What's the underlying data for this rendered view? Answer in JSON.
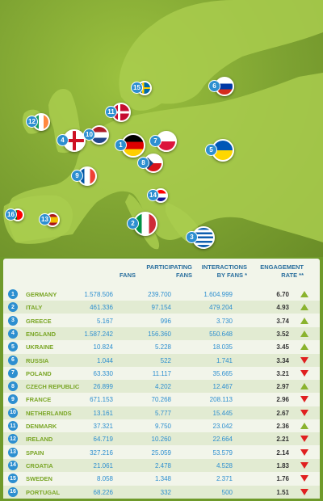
{
  "chart_data": {
    "type": "table",
    "columns": [
      "",
      "FANS",
      "PARTICIPATING FANS",
      "INTERACTIONS BY FANS *",
      "ENGAGEMENT RATE **"
    ],
    "column_lines": [
      [
        "FANS"
      ],
      [
        "PARTICIPATING",
        "FANS"
      ],
      [
        "INTERACTIONS",
        "BY FANS *"
      ],
      [
        "ENGAGEMENT",
        "RATE **"
      ]
    ],
    "rows": [
      {
        "rank": "1",
        "country": "GERMANY",
        "fans": "1.578.506",
        "participating": "239.700",
        "interactions": "1.604.999",
        "rate": "6.70",
        "trend": "up",
        "flag": [
          "#000000",
          "#dd0000",
          "#ffce00"
        ],
        "flag_dir": "h"
      },
      {
        "rank": "2",
        "country": "ITALY",
        "fans": "461.336",
        "participating": "97.154",
        "interactions": "479.204",
        "rate": "4.93",
        "trend": "up",
        "flag": [
          "#009246",
          "#ffffff",
          "#ce2b37"
        ],
        "flag_dir": "v"
      },
      {
        "rank": "3",
        "country": "GREECE",
        "fans": "5.167",
        "participating": "996",
        "interactions": "3.730",
        "rate": "3.74",
        "trend": "up",
        "flag": [
          "#0d5eaf",
          "#ffffff",
          "#0d5eaf"
        ],
        "flag_dir": "stripes"
      },
      {
        "rank": "4",
        "country": "ENGLAND",
        "fans": "1.587.242",
        "participating": "156.360",
        "interactions": "550.648",
        "rate": "3.52",
        "trend": "up",
        "flag": [
          "#ffffff",
          "#ce1124"
        ],
        "flag_dir": "cross"
      },
      {
        "rank": "5",
        "country": "UKRAINE",
        "fans": "10.824",
        "participating": "5.228",
        "interactions": "18.035",
        "rate": "3.45",
        "trend": "up",
        "flag": [
          "#0057b7",
          "#ffd700"
        ],
        "flag_dir": "h"
      },
      {
        "rank": "6",
        "country": "RUSSIA",
        "fans": "1.044",
        "participating": "522",
        "interactions": "1.741",
        "rate": "3.34",
        "trend": "down",
        "flag": [
          "#ffffff",
          "#0039a6",
          "#d52b1e"
        ],
        "flag_dir": "h"
      },
      {
        "rank": "7",
        "country": "POLAND",
        "fans": "63.330",
        "participating": "11.117",
        "interactions": "35.665",
        "rate": "3.21",
        "trend": "down",
        "flag": [
          "#ffffff",
          "#dc143c"
        ],
        "flag_dir": "h"
      },
      {
        "rank": "8",
        "country": "CZECH REPUBLIC",
        "fans": "26.899",
        "participating": "4.202",
        "interactions": "12.467",
        "rate": "2.97",
        "trend": "up",
        "flag": [
          "#ffffff",
          "#d7141a",
          "#11457e"
        ],
        "flag_dir": "czech"
      },
      {
        "rank": "9",
        "country": "FRANCE",
        "fans": "671.153",
        "participating": "70.268",
        "interactions": "208.113",
        "rate": "2.96",
        "trend": "down",
        "flag": [
          "#0055a4",
          "#ffffff",
          "#ef4135"
        ],
        "flag_dir": "v"
      },
      {
        "rank": "10",
        "country": "NETHERLANDS",
        "fans": "13.161",
        "participating": "5.777",
        "interactions": "15.445",
        "rate": "2.67",
        "trend": "down",
        "flag": [
          "#ae1c28",
          "#ffffff",
          "#21468b"
        ],
        "flag_dir": "h"
      },
      {
        "rank": "11",
        "country": "DENMARK",
        "fans": "37.321",
        "participating": "9.750",
        "interactions": "23.042",
        "rate": "2.36",
        "trend": "up",
        "flag": [
          "#c60c30",
          "#ffffff"
        ],
        "flag_dir": "nordic"
      },
      {
        "rank": "12",
        "country": "IRELAND",
        "fans": "64.719",
        "participating": "10.260",
        "interactions": "22.664",
        "rate": "2.21",
        "trend": "down",
        "flag": [
          "#169b62",
          "#ffffff",
          "#ff883e"
        ],
        "flag_dir": "v"
      },
      {
        "rank": "13",
        "country": "SPAIN",
        "fans": "327.216",
        "participating": "25.059",
        "interactions": "53.579",
        "rate": "2.14",
        "trend": "down",
        "flag": [
          "#aa151b",
          "#f1bf00",
          "#aa151b"
        ],
        "flag_dir": "spain"
      },
      {
        "rank": "14",
        "country": "CROATIA",
        "fans": "21.061",
        "participating": "2.478",
        "interactions": "4.528",
        "rate": "1.83",
        "trend": "down",
        "flag": [
          "#ff0000",
          "#ffffff",
          "#171796"
        ],
        "flag_dir": "h"
      },
      {
        "rank": "15",
        "country": "SWEDEN",
        "fans": "8.058",
        "participating": "1.348",
        "interactions": "2.371",
        "rate": "1.76",
        "trend": "down",
        "flag": [
          "#006aa7",
          "#fecc00"
        ],
        "flag_dir": "nordic"
      },
      {
        "rank": "16",
        "country": "PORTUGAL",
        "fans": "68.226",
        "participating": "332",
        "interactions": "500",
        "rate": "1.51",
        "trend": "down",
        "flag": [
          "#006600",
          "#ff0000"
        ],
        "flag_dir": "portugal"
      }
    ]
  },
  "colors": {
    "up": "#8ab32e",
    "down": "#e02020",
    "rank_badge": "#2d8fd0",
    "country_text": "#7aa626",
    "value_text": "#2d8fd0",
    "sea": "#6f9a2a",
    "land": "#a9cc4e"
  }
}
